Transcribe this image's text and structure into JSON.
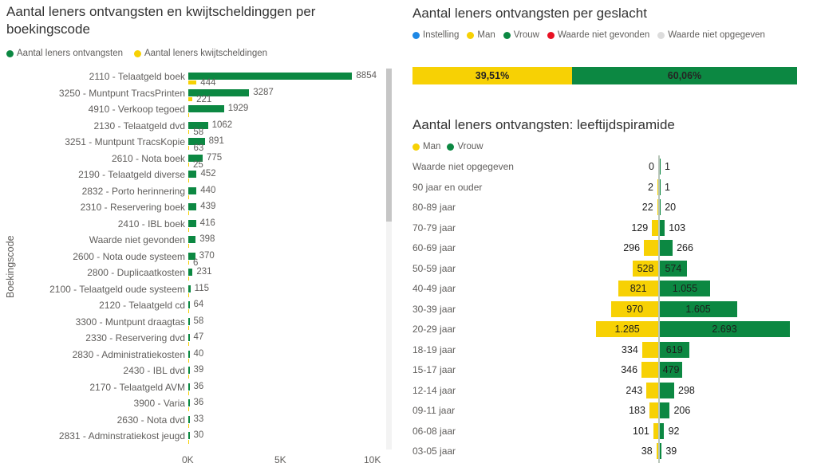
{
  "chart_data": [
    {
      "type": "bar",
      "orientation": "horizontal",
      "title": "Aantal leners ontvangsten en kwijtscheldinggen per boekingscode",
      "ylabel": "Boekingscode",
      "xlim": [
        0,
        10000
      ],
      "x_ticks": [
        "0K",
        "5K",
        "10K"
      ],
      "grid": false,
      "legend_position": "top",
      "legend": [
        {
          "label": "Aantal leners ontvangsten",
          "color": "#0C8842"
        },
        {
          "label": "Aantal leners kwijtscheldingen",
          "color": "#F7D104"
        }
      ],
      "categories": [
        "2110 - Telaatgeld boek",
        "3250 - Muntpunt TracsPrinten",
        "4910 - Verkoop tegoed",
        "2130 - Telaatgeld dvd",
        "3251 - Muntpunt TracsKopie",
        "2610 - Nota boek",
        "2190 - Telaatgeld diverse",
        "2832 - Porto herinnering",
        "2310 - Reservering boek",
        "2410 - IBL boek",
        "Waarde niet gevonden",
        "2600 - Nota oude systeem",
        "2800 - Duplicaatkosten",
        "2100 - Telaatgeld oude systeem",
        "2120 - Telaatgeld cd",
        "3300 - Muntpunt draagtas",
        "2330 - Reservering dvd",
        "2830 - Administratiekosten",
        "2430 - IBL dvd",
        "2170 - Telaatgeld AVM",
        "3900 - Varia",
        "2630 - Nota dvd",
        "2831 - Adminstratiekost jeugd"
      ],
      "series": [
        {
          "name": "Aantal leners ontvangsten",
          "color": "#0C8842",
          "values": [
            8854,
            3287,
            1929,
            1062,
            891,
            775,
            452,
            440,
            439,
            416,
            398,
            370,
            231,
            115,
            64,
            58,
            47,
            40,
            39,
            36,
            36,
            33,
            30
          ]
        },
        {
          "name": "Aantal leners kwijtscheldingen",
          "color": "#F7D104",
          "values": [
            444,
            221,
            null,
            58,
            63,
            25,
            null,
            null,
            null,
            null,
            null,
            6,
            null,
            null,
            null,
            null,
            null,
            null,
            null,
            null,
            null,
            null,
            null
          ]
        }
      ]
    },
    {
      "type": "bar",
      "subtype": "stacked-100pct",
      "title": "Aantal leners ontvangsten per geslacht",
      "legend_position": "top",
      "legend": [
        {
          "label": "Instelling",
          "color": "#1E88E5"
        },
        {
          "label": "Man",
          "color": "#F7D104"
        },
        {
          "label": "Vrouw",
          "color": "#0C8842"
        },
        {
          "label": "Waarde niet gevonden",
          "color": "#E81123"
        },
        {
          "label": "Waarde niet opgegeven",
          "color": "#DCDCDC"
        }
      ],
      "segments": [
        {
          "name": "Man",
          "label": "39,51%",
          "value": 39.51,
          "color": "#F7D104"
        },
        {
          "name": "Vrouw",
          "label": "60,06%",
          "value": 60.06,
          "color": "#0C8842"
        }
      ]
    },
    {
      "type": "bar",
      "subtype": "population-pyramid",
      "title": "Aantal leners ontvangsten: leeftijdspiramide",
      "legend_position": "top",
      "xlim_each_side": [
        0,
        2800
      ],
      "legend": [
        {
          "label": "Man",
          "color": "#F7D104"
        },
        {
          "label": "Vrouw",
          "color": "#0C8842"
        }
      ],
      "categories": [
        "Waarde niet opgegeven",
        "90 jaar en ouder",
        "80-89 jaar",
        "70-79 jaar",
        "60-69 jaar",
        "50-59 jaar",
        "40-49 jaar",
        "30-39 jaar",
        "20-29 jaar",
        "18-19 jaar",
        "15-17 jaar",
        "12-14 jaar",
        "09-11 jaar",
        "06-08 jaar",
        "03-05 jaar"
      ],
      "series": [
        {
          "name": "Man",
          "color": "#F7D104",
          "values": [
            0,
            2,
            22,
            129,
            296,
            528,
            821,
            970,
            1285,
            334,
            346,
            243,
            183,
            101,
            38
          ],
          "labels": [
            "0",
            "2",
            "22",
            "129",
            "296",
            "528",
            "821",
            "970",
            "1.285",
            "334",
            "346",
            "243",
            "183",
            "101",
            "38"
          ]
        },
        {
          "name": "Vrouw",
          "color": "#0C8842",
          "values": [
            1,
            1,
            20,
            103,
            266,
            574,
            1055,
            1605,
            2693,
            619,
            479,
            298,
            206,
            92,
            39
          ],
          "labels": [
            "1",
            "1",
            "20",
            "103",
            "266",
            "574",
            "1.055",
            "1.605",
            "2.693",
            "619",
            "479",
            "298",
            "206",
            "92",
            "39"
          ]
        }
      ]
    }
  ]
}
